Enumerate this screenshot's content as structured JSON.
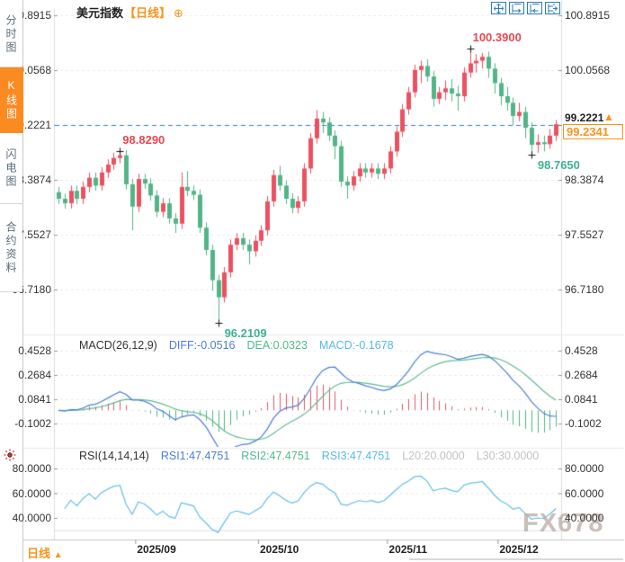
{
  "header": {
    "symbol": "美元指数",
    "period_tag": "【日线】",
    "add_icon": "⊕"
  },
  "sidebar": {
    "items": [
      {
        "label": "分时图",
        "active": false
      },
      {
        "label": "K线图",
        "active": true
      },
      {
        "label": "闪电图",
        "active": false
      },
      {
        "label": "合约资料",
        "active": false
      }
    ]
  },
  "toolbar": {
    "buttons": [
      {
        "name": "pan-tool"
      },
      {
        "name": "expand-xaxis"
      },
      {
        "name": "shrink-xaxis"
      },
      {
        "name": "goto-latest"
      }
    ]
  },
  "macd_legend": {
    "title": "MACD(26,12,9)",
    "diff": "DIFF:-0.0516",
    "dea": "DEA:0.0323",
    "macd": "MACD:-0.1678"
  },
  "rsi_legend": {
    "title": "RSI(14,14,14)",
    "rsi1": "RSI1:47.4751",
    "rsi2": "RSI2:47.4751",
    "rsi3": "RSI3:47.4751",
    "l20": "L20:20.0000",
    "l30": "L30:30.0000"
  },
  "price_panel": {
    "ref_label": "99.2221",
    "ref_arrow": "▲",
    "last_label": "99.2341"
  },
  "footer": {
    "period_label": "日线",
    "arrow": "▲"
  },
  "watermark": "FX678",
  "colors": {
    "up": "#ec5160",
    "down": "#52b586",
    "ref_line": "#1f80e0",
    "accent": "#f7941d",
    "ann_red": "#ec4653",
    "ann_green": "#3db392",
    "diff_line": "#4a7fd4",
    "dea_line": "#5fbb8e",
    "hist_up": "#e05663",
    "hist_down": "#52b586",
    "rsi_line": "#63bde8",
    "grid": "#ececec",
    "axis": "#dddddd",
    "tick": "#999999"
  },
  "chart_data": {
    "type": "candlestick",
    "title": "美元指数 日线",
    "price_ticks": [
      100.8915,
      100.0568,
      99.2221,
      98.3874,
      97.5527,
      96.718
    ],
    "price_tick_labels": [
      "100.8915",
      "100.0568",
      "99.2221",
      "98.3874",
      "97.5527",
      "96.7180"
    ],
    "x_ticks": [
      {
        "i": 13,
        "label": "2025/09"
      },
      {
        "i": 33,
        "label": "2025/10"
      },
      {
        "i": 54,
        "label": "2025/11"
      },
      {
        "i": 72,
        "label": "2025/12"
      }
    ],
    "ref_line": {
      "value": 99.2221,
      "label": "99.2221"
    },
    "last_price": {
      "value": 99.2341,
      "label": "99.2341"
    },
    "annotations": [
      {
        "index": 10,
        "at": "high",
        "side": "above",
        "text": "98.8290",
        "color": "#ec4653"
      },
      {
        "index": 67,
        "at": "high",
        "side": "above",
        "text": "100.3900",
        "color": "#ec4653"
      },
      {
        "index": 26,
        "at": "low",
        "side": "below",
        "text": "96.2109",
        "color": "#3db392"
      },
      {
        "index": 77,
        "at": "low",
        "side": "below",
        "text": "98.7650",
        "color": "#3db392"
      }
    ],
    "candles": [
      [
        98.2,
        98.28,
        98.02,
        98.1
      ],
      [
        98.1,
        98.18,
        97.95,
        98.03
      ],
      [
        98.03,
        98.3,
        97.95,
        98.22
      ],
      [
        98.22,
        98.3,
        98.02,
        98.1
      ],
      [
        98.1,
        98.36,
        98.02,
        98.28
      ],
      [
        98.28,
        98.5,
        98.2,
        98.42
      ],
      [
        98.42,
        98.5,
        98.22,
        98.3
      ],
      [
        98.3,
        98.58,
        98.22,
        98.5
      ],
      [
        98.5,
        98.7,
        98.42,
        98.62
      ],
      [
        98.62,
        98.8,
        98.54,
        98.72
      ],
      [
        98.72,
        98.829,
        98.64,
        98.76
      ],
      [
        98.76,
        98.84,
        98.24,
        98.32
      ],
      [
        98.32,
        98.4,
        97.62,
        97.98
      ],
      [
        97.98,
        98.48,
        97.9,
        98.4
      ],
      [
        98.4,
        98.48,
        98.25,
        98.33
      ],
      [
        98.33,
        98.41,
        98.07,
        98.15
      ],
      [
        98.15,
        98.23,
        97.82,
        97.9
      ],
      [
        97.9,
        98.11,
        97.82,
        98.03
      ],
      [
        98.03,
        98.11,
        97.72,
        97.8
      ],
      [
        97.8,
        97.88,
        97.58,
        97.72
      ],
      [
        97.72,
        98.5,
        97.64,
        98.28
      ],
      [
        98.28,
        98.52,
        98.14,
        98.22
      ],
      [
        98.22,
        98.3,
        98.08,
        98.16
      ],
      [
        98.16,
        98.24,
        97.58,
        97.66
      ],
      [
        97.66,
        97.74,
        97.24,
        97.32
      ],
      [
        97.32,
        97.4,
        96.7,
        96.86
      ],
      [
        96.86,
        96.94,
        96.2109,
        96.6
      ],
      [
        96.6,
        97.06,
        96.52,
        96.98
      ],
      [
        96.98,
        97.48,
        96.9,
        97.4
      ],
      [
        97.4,
        97.58,
        97.32,
        97.5
      ],
      [
        97.5,
        97.58,
        97.32,
        97.4
      ],
      [
        97.4,
        97.48,
        97.1,
        97.3
      ],
      [
        97.3,
        97.54,
        97.22,
        97.46
      ],
      [
        97.46,
        97.7,
        97.38,
        97.62
      ],
      [
        97.62,
        98.14,
        97.54,
        98.06
      ],
      [
        98.06,
        98.54,
        97.98,
        98.46
      ],
      [
        98.46,
        98.6,
        98.22,
        98.3
      ],
      [
        98.3,
        98.38,
        98.02,
        98.1
      ],
      [
        98.1,
        98.18,
        97.88,
        97.96
      ],
      [
        97.96,
        98.14,
        97.88,
        98.06
      ],
      [
        98.06,
        98.64,
        97.98,
        98.56
      ],
      [
        98.56,
        99.1,
        98.48,
        99.02
      ],
      [
        99.02,
        99.45,
        98.94,
        99.32
      ],
      [
        99.32,
        99.42,
        99.1,
        99.26
      ],
      [
        99.26,
        99.34,
        98.98,
        99.06
      ],
      [
        99.06,
        99.14,
        98.7,
        98.9
      ],
      [
        98.9,
        98.98,
        98.28,
        98.36
      ],
      [
        98.36,
        98.44,
        98.1,
        98.3
      ],
      [
        98.3,
        98.52,
        98.22,
        98.44
      ],
      [
        98.44,
        98.64,
        98.36,
        98.56
      ],
      [
        98.56,
        98.64,
        98.42,
        98.5
      ],
      [
        98.5,
        98.64,
        98.42,
        98.56
      ],
      [
        98.56,
        98.64,
        98.4,
        98.48
      ],
      [
        98.48,
        98.64,
        98.4,
        98.56
      ],
      [
        98.56,
        98.9,
        98.48,
        98.82
      ],
      [
        98.82,
        99.2,
        98.74,
        99.12
      ],
      [
        99.12,
        99.54,
        99.04,
        99.46
      ],
      [
        99.46,
        99.8,
        99.38,
        99.72
      ],
      [
        99.72,
        100.14,
        99.64,
        100.06
      ],
      [
        100.06,
        100.2,
        99.86,
        100.12
      ],
      [
        100.12,
        100.22,
        99.88,
        99.96
      ],
      [
        99.96,
        100.04,
        99.5,
        99.62
      ],
      [
        99.62,
        99.8,
        99.54,
        99.72
      ],
      [
        99.72,
        99.9,
        99.6,
        99.78
      ],
      [
        99.78,
        99.92,
        99.58,
        99.7
      ],
      [
        99.7,
        99.82,
        99.44,
        99.66
      ],
      [
        99.66,
        100.1,
        99.58,
        100.02
      ],
      [
        100.02,
        100.39,
        99.94,
        100.16
      ],
      [
        100.16,
        100.3,
        100.02,
        100.2
      ],
      [
        100.2,
        100.32,
        100.08,
        100.26
      ],
      [
        100.26,
        100.34,
        99.94,
        100.08
      ],
      [
        100.08,
        100.16,
        99.7,
        99.86
      ],
      [
        99.86,
        99.94,
        99.52,
        99.66
      ],
      [
        99.66,
        99.8,
        99.44,
        99.56
      ],
      [
        99.56,
        99.64,
        99.22,
        99.36
      ],
      [
        99.36,
        99.56,
        99.28,
        99.42
      ],
      [
        99.42,
        99.5,
        99.02,
        99.18
      ],
      [
        99.18,
        99.26,
        98.765,
        98.92
      ],
      [
        98.92,
        99.08,
        98.8,
        98.96
      ],
      [
        98.96,
        99.06,
        98.82,
        98.93
      ],
      [
        98.93,
        99.16,
        98.86,
        99.06
      ],
      [
        99.06,
        99.3,
        98.98,
        99.2341
      ]
    ],
    "sub_charts": [
      {
        "type": "macd",
        "params": [
          26,
          12,
          9
        ],
        "ticks": [
          0.4528,
          0.2684,
          0.0841,
          -0.1002
        ],
        "tick_labels": [
          "0.4528",
          "0.2684",
          "0.0841",
          "-0.1002"
        ],
        "values": {
          "diff": -0.0516,
          "dea": 0.0323,
          "macd": -0.1678
        }
      },
      {
        "type": "rsi",
        "params": [
          14,
          14,
          14
        ],
        "ticks": [
          80,
          60,
          40
        ],
        "tick_labels": [
          "80.0000",
          "60.0000",
          "40.0000"
        ],
        "levels": {
          "l20": 20.0,
          "l30": 30.0
        },
        "values": {
          "rsi1": 47.4751,
          "rsi2": 47.4751,
          "rsi3": 47.4751
        }
      }
    ]
  }
}
